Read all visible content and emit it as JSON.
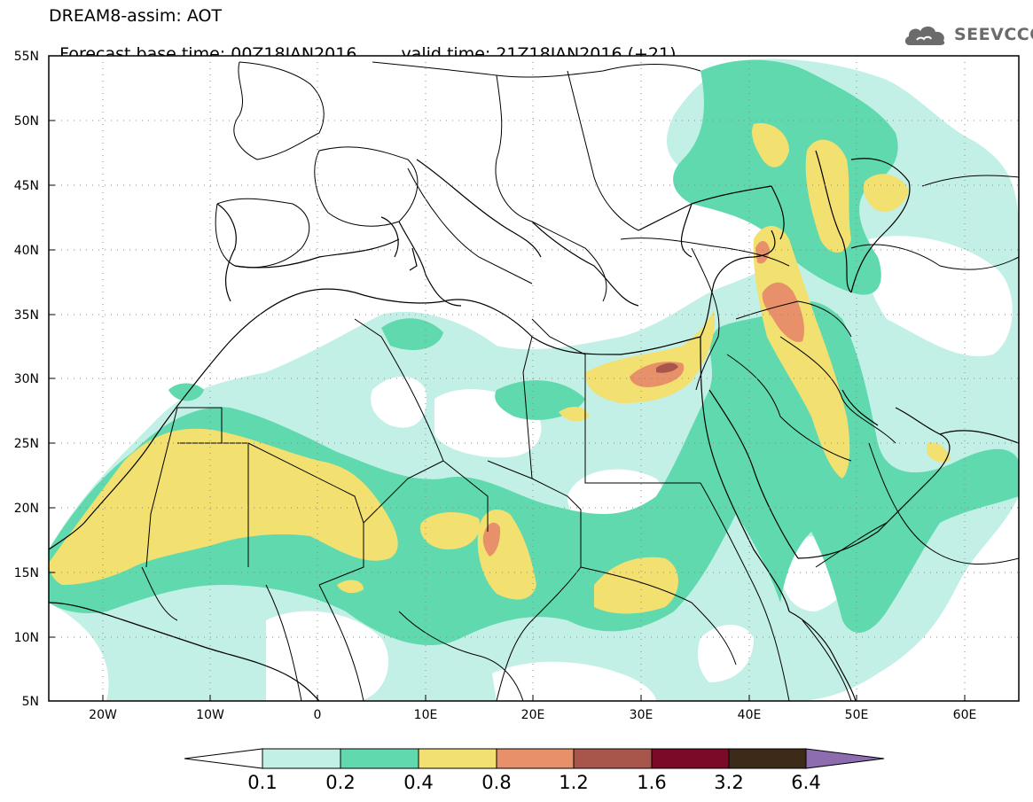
{
  "header": {
    "line1": "DREAM8-assim: AOT",
    "base_time": "Forecast base time: 00Z18JAN2016",
    "valid_time": "valid time: 21Z18JAN2016 (+21)"
  },
  "logo": {
    "text": "SEEVCCC",
    "icon": "cloud-icon"
  },
  "map": {
    "variable": "Aerosol optical thickness",
    "lon_range": [
      -25,
      65
    ],
    "lat_range": [
      5,
      55
    ],
    "lat_ticks": [
      "55N",
      "50N",
      "45N",
      "40N",
      "35N",
      "30N",
      "25N",
      "20N",
      "15N",
      "10N",
      "5N"
    ],
    "lon_ticks": [
      "20W",
      "10W",
      "0",
      "10E",
      "20E",
      "30E",
      "40E",
      "50E",
      "60E"
    ],
    "grid": "dotted"
  },
  "colorbar": {
    "labels": [
      "0.1",
      "0.2",
      "0.4",
      "0.8",
      "1.2",
      "1.6",
      "3.2",
      "6.4"
    ],
    "colors": [
      "#ffffff",
      "#c3f0e6",
      "#5fd9ad",
      "#f2e070",
      "#e8906a",
      "#a8564c",
      "#7a0a28",
      "#3d2a18",
      "#8d6cb0"
    ]
  },
  "levels_colors": {
    "0.1-0.2": "#c3f0e6",
    "0.2-0.4": "#5fd9ad",
    "0.4-0.8": "#f2e070",
    "0.8-1.2": "#e8906a",
    "1.2-1.6": "#a8564c"
  }
}
